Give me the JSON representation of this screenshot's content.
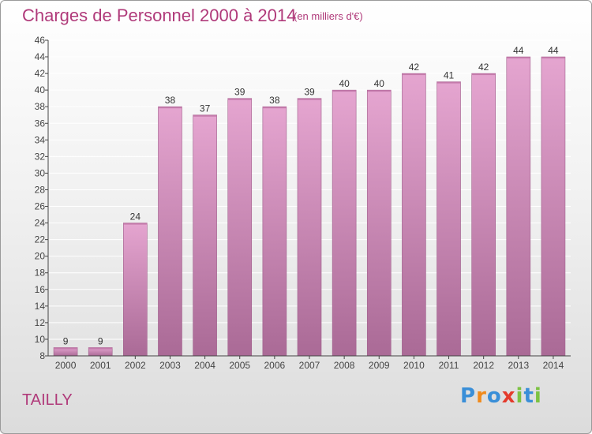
{
  "title": "Charges de Personnel 2000 à 2014",
  "subtitle": "(en milliers d'€)",
  "town": "TAILLY",
  "logo": {
    "text": "Proxiti",
    "letters": [
      {
        "ch": "P",
        "color": "#3a8fd8"
      },
      {
        "ch": "r",
        "color": "#f08a1c"
      },
      {
        "ch": "o",
        "color": "#3a8fd8"
      },
      {
        "ch": "x",
        "color": "#e43b2c"
      },
      {
        "ch": "i",
        "color": "#7cc242"
      },
      {
        "ch": "t",
        "color": "#3a8fd8"
      },
      {
        "ch": "i",
        "color": "#7cc242"
      }
    ]
  },
  "colors": {
    "bar_top": "#e5a5d0",
    "bar_bottom": "#aa6a96",
    "bar_stroke": "#a0608c",
    "title": "#b03a7a",
    "axis": "#444444",
    "grid": "#ffffff"
  },
  "chart_data": {
    "type": "bar",
    "categories": [
      "2000",
      "2001",
      "2002",
      "2003",
      "2004",
      "2005",
      "2006",
      "2007",
      "2008",
      "2009",
      "2010",
      "2011",
      "2012",
      "2013",
      "2014"
    ],
    "values": [
      9,
      9,
      24,
      38,
      37,
      39,
      38,
      39,
      40,
      40,
      42,
      41,
      42,
      44,
      44
    ],
    "ylim": [
      8,
      46
    ],
    "yticks": [
      8,
      10,
      12,
      14,
      16,
      18,
      20,
      22,
      24,
      26,
      28,
      30,
      32,
      34,
      36,
      38,
      40,
      42,
      44,
      46
    ],
    "grid": true,
    "data_labels": true
  }
}
